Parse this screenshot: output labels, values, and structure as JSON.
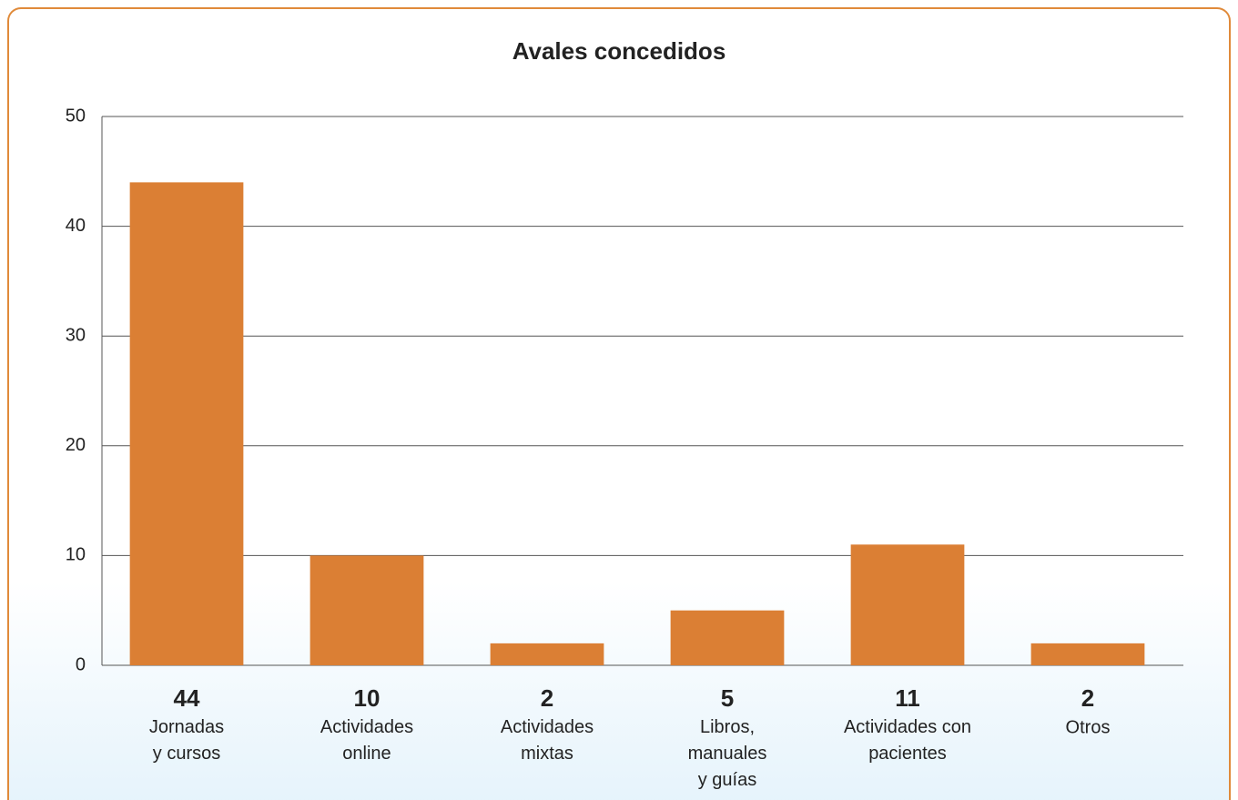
{
  "chart_data": {
    "type": "bar",
    "title": "Avales concedidos",
    "categories": [
      "Jornadas\ny cursos",
      "Actividades\nonline",
      "Actividades\nmixtas",
      "Libros,\nmanuales\ny guías",
      "Actividades con\npacientes",
      "Otros"
    ],
    "values": [
      44,
      10,
      2,
      5,
      11,
      2
    ],
    "color": "#db7f34",
    "ylim": [
      0,
      50
    ],
    "yticks": [
      0,
      10,
      20,
      30,
      40,
      50
    ],
    "grid": true
  }
}
